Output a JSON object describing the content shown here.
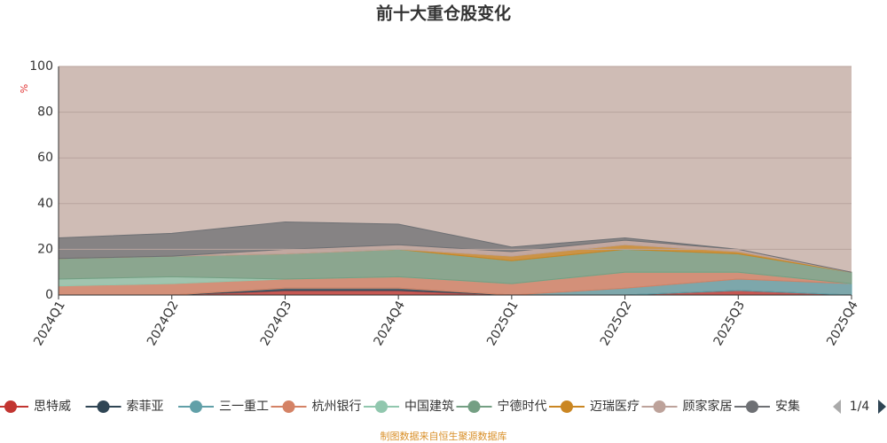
{
  "chart_data": {
    "type": "stacked-area",
    "title": "前十大重仓股变化",
    "y_label": "%",
    "categories": [
      "2024Q1",
      "2024Q2",
      "2024Q3",
      "2024Q4",
      "2025Q1",
      "2025Q2",
      "2025Q3",
      "2025Q4"
    ],
    "series": [
      {
        "name": "思特威",
        "color": "#c23531",
        "values": [
          0,
          0,
          2,
          2,
          0,
          0,
          2,
          0
        ]
      },
      {
        "name": "索菲亚",
        "color": "#2f4554",
        "values": [
          0,
          0,
          1,
          1,
          0,
          0,
          0,
          0
        ]
      },
      {
        "name": "三一重工",
        "color": "#61a0a8",
        "values": [
          0,
          0,
          0,
          0,
          0,
          3,
          5,
          5
        ]
      },
      {
        "name": "杭州银行",
        "color": "#d48265",
        "values": [
          4,
          5,
          4,
          5,
          5,
          7,
          3,
          0
        ]
      },
      {
        "name": "中国建筑",
        "color": "#91c7ae",
        "values": [
          3,
          3,
          0,
          0,
          0,
          0,
          0,
          0
        ]
      },
      {
        "name": "宁德时代",
        "color": "#749f83",
        "values": [
          9,
          9,
          11,
          12,
          10,
          10,
          8,
          5
        ]
      },
      {
        "name": "迈瑞医疗",
        "color": "#ca8622",
        "values": [
          0,
          0,
          0,
          0,
          2,
          2,
          1,
          0
        ]
      },
      {
        "name": "顾家家居",
        "color": "#bda29a",
        "values": [
          0,
          0,
          2,
          2,
          2,
          2,
          1,
          0
        ]
      },
      {
        "name": "安集",
        "color": "#6e7074",
        "values": [
          9,
          10,
          12,
          9,
          2,
          1,
          0,
          0
        ]
      }
    ],
    "ylim": [
      0,
      100
    ],
    "yticks": [
      0,
      20,
      40,
      60,
      80,
      100
    ],
    "grid": true,
    "legend_page": "1/4",
    "source": "制图数据来自恒生聚源数据库"
  }
}
